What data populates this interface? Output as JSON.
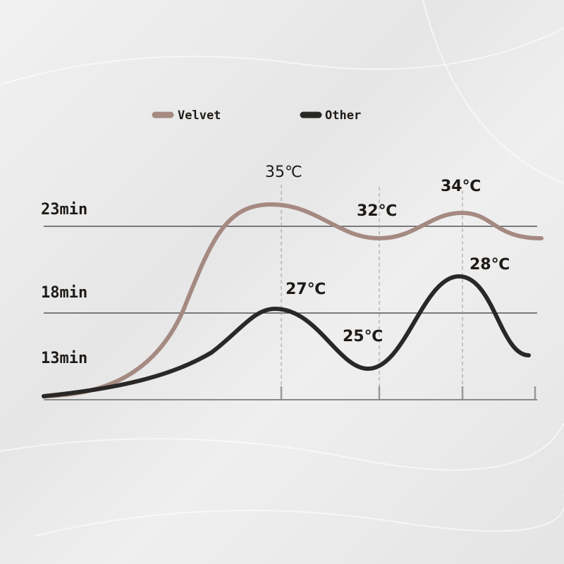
{
  "chart_data": {
    "type": "line",
    "legend": {
      "placement": "top",
      "entries": [
        "Velvet",
        "Other"
      ]
    },
    "y_tick_labels": [
      "23min",
      "18min",
      "13min"
    ],
    "grid": "horizontal lines and dashed vertical guides",
    "series": [
      {
        "name": "Velvet",
        "color": "#a58a82",
        "annotations": [
          "35℃",
          "32℃",
          "34℃"
        ]
      },
      {
        "name": "Other",
        "color": "#2a2826",
        "annotations": [
          "27℃",
          "25℃",
          "28℃"
        ]
      }
    ]
  }
}
